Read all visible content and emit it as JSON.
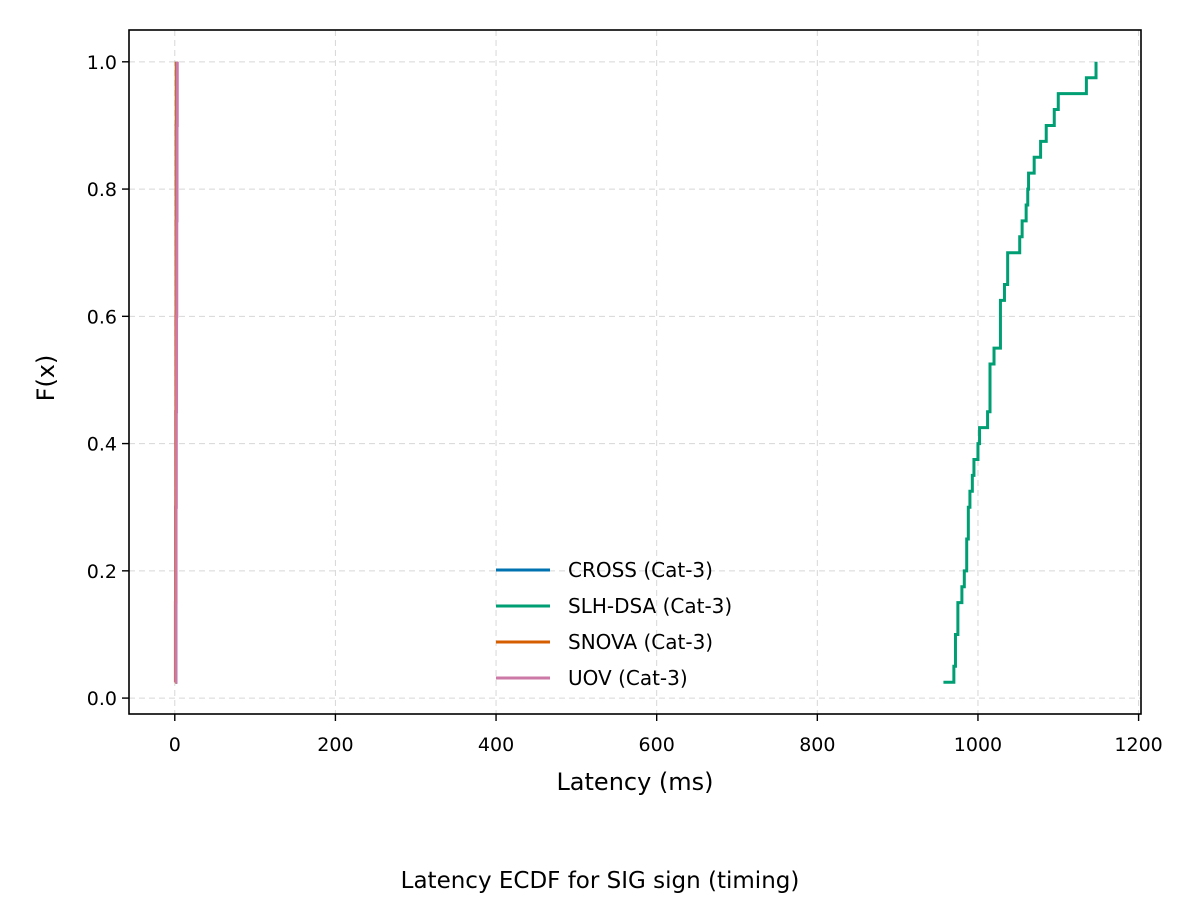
{
  "chart_data": {
    "type": "line",
    "subtype": "step-ecdf",
    "caption": "Latency ECDF for SIG sign (timing)",
    "xlabel": "Latency (ms)",
    "ylabel": "F(x)",
    "xlim": [
      -57,
      1203
    ],
    "ylim": [
      -0.025,
      1.05
    ],
    "xticks": [
      0,
      200,
      400,
      600,
      800,
      1000,
      1200
    ],
    "yticks": [
      0.0,
      0.2,
      0.4,
      0.6,
      0.8,
      1.0
    ],
    "xtick_labels": [
      "0",
      "200",
      "400",
      "600",
      "800",
      "1000",
      "1200"
    ],
    "ytick_labels": [
      "0.0",
      "0.2",
      "0.4",
      "0.6",
      "0.8",
      "1.0"
    ],
    "grid": true,
    "legend_position": "lower center",
    "series": [
      {
        "name": "CROSS (Cat-3)",
        "color": "#0072b2",
        "x": [
          1.2,
          1.3,
          1.4,
          1.5,
          1.6,
          1.7,
          1.8,
          1.9
        ],
        "y": [
          0.025,
          0.15,
          0.3,
          0.45,
          0.6,
          0.75,
          0.9,
          1.0
        ]
      },
      {
        "name": "SLH-DSA (Cat-3)",
        "color": "#009e73",
        "x": [
          957,
          970,
          972,
          975,
          980,
          983,
          986,
          988,
          990,
          993,
          995,
          1000,
          1002,
          1012,
          1015,
          1020,
          1028,
          1033,
          1037,
          1052,
          1055,
          1060,
          1062,
          1063,
          1070,
          1078,
          1085,
          1095,
          1100,
          1135,
          1147
        ],
        "y": [
          0.025,
          0.05,
          0.1,
          0.15,
          0.175,
          0.2,
          0.25,
          0.3,
          0.325,
          0.35,
          0.375,
          0.4,
          0.425,
          0.45,
          0.525,
          0.55,
          0.625,
          0.65,
          0.7,
          0.725,
          0.75,
          0.775,
          0.8,
          0.825,
          0.85,
          0.875,
          0.9,
          0.925,
          0.95,
          0.975,
          1.0
        ]
      },
      {
        "name": "SNOVA (Cat-3)",
        "color": "#d55e00",
        "x": [
          0.6,
          0.8,
          1.0,
          1.2,
          1.4,
          1.6,
          1.8,
          2.0
        ],
        "y": [
          0.025,
          0.15,
          0.3,
          0.45,
          0.6,
          0.75,
          0.9,
          1.0
        ]
      },
      {
        "name": "UOV (Cat-3)",
        "color": "#cc79a7",
        "x": [
          1.0,
          1.3,
          1.6,
          1.9,
          2.2,
          2.5,
          2.8,
          3.1
        ],
        "y": [
          0.025,
          0.15,
          0.3,
          0.45,
          0.6,
          0.75,
          0.9,
          1.0
        ]
      }
    ]
  }
}
